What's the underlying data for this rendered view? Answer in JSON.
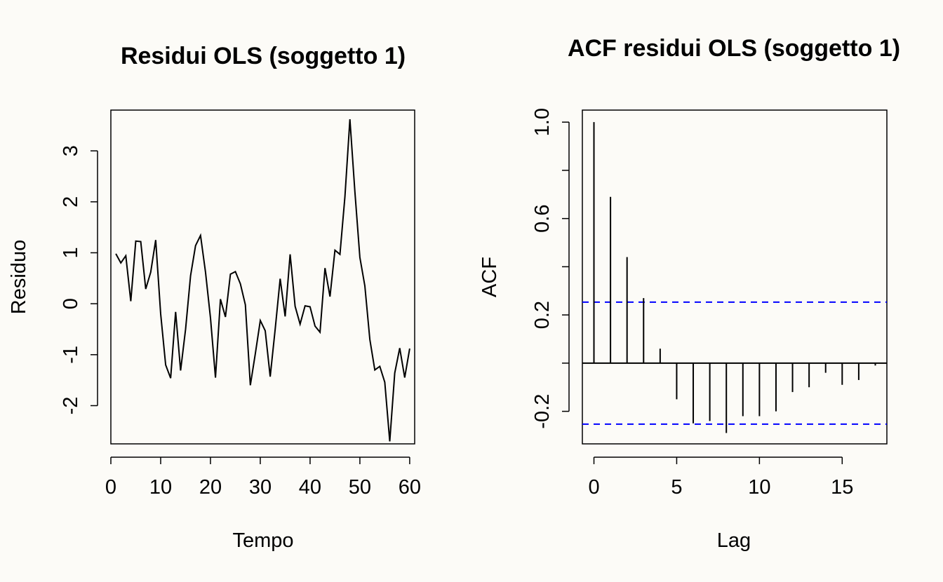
{
  "chart_data": [
    {
      "type": "line",
      "title": "Residui OLS (soggetto 1)",
      "xlabel": "Tempo",
      "ylabel": "Residuo",
      "xlim": [
        0,
        61
      ],
      "ylim": [
        -2.75,
        3.8
      ],
      "x_ticks": [
        0,
        10,
        20,
        30,
        40,
        50,
        60
      ],
      "y_ticks": [
        -2,
        -1,
        0,
        1,
        2,
        3
      ],
      "x_tick_labels": [
        "0",
        "10",
        "20",
        "30",
        "40",
        "50",
        "60"
      ],
      "y_tick_labels": [
        "-2",
        "-1",
        "0",
        "1",
        "2",
        "3"
      ],
      "series": [
        {
          "color": "#000000",
          "x": [
            1,
            2,
            3,
            4,
            5,
            6,
            7,
            8,
            9,
            10,
            11,
            12,
            13,
            14,
            15,
            16,
            17,
            18,
            19,
            20,
            21,
            22,
            23,
            24,
            25,
            26,
            27,
            28,
            29,
            30,
            31,
            32,
            33,
            34,
            35,
            36,
            37,
            38,
            39,
            40,
            41,
            42,
            43,
            44,
            45,
            46,
            47,
            48,
            49,
            50,
            51,
            52,
            53,
            54,
            55,
            56,
            57,
            58,
            59,
            60
          ],
          "values": [
            0.98,
            0.8,
            0.94,
            0.05,
            1.23,
            1.22,
            0.29,
            0.62,
            1.25,
            -0.2,
            -1.2,
            -1.46,
            -0.16,
            -1.31,
            -0.5,
            0.55,
            1.14,
            1.34,
            0.62,
            -0.28,
            -1.45,
            0.09,
            -0.26,
            0.58,
            0.63,
            0.39,
            -0.02,
            -1.6,
            -0.98,
            -0.33,
            -0.53,
            -1.43,
            -0.5,
            0.49,
            -0.25,
            0.97,
            -0.05,
            -0.4,
            -0.04,
            -0.06,
            -0.44,
            -0.56,
            0.7,
            0.14,
            1.05,
            0.97,
            2.1,
            3.62,
            2.2,
            0.91,
            0.35,
            -0.7,
            -1.3,
            -1.23,
            -1.54,
            -2.7,
            -1.36,
            -0.87,
            -1.45,
            -0.88
          ]
        }
      ]
    },
    {
      "type": "bar",
      "title": "ACF residui OLS (soggetto 1)",
      "xlabel": "Lag",
      "ylabel": "ACF",
      "xlim": [
        -0.7,
        17.7
      ],
      "ylim": [
        -0.335,
        1.05
      ],
      "x_ticks": [
        0,
        5,
        10,
        15
      ],
      "y_ticks": [
        -0.2,
        0.2,
        0.6,
        1.0
      ],
      "y_minor_ticks": [
        0.0,
        0.4,
        0.8
      ],
      "x_tick_labels": [
        "0",
        "5",
        "10",
        "15"
      ],
      "y_tick_labels": [
        "-0.2",
        "0.2",
        "0.6",
        "1.0"
      ],
      "lags": [
        0,
        1,
        2,
        3,
        4,
        5,
        6,
        7,
        8,
        9,
        10,
        11,
        12,
        13,
        14,
        15,
        16,
        17
      ],
      "values": [
        1.0,
        0.69,
        0.44,
        0.27,
        0.06,
        -0.15,
        -0.25,
        -0.24,
        -0.29,
        -0.22,
        -0.22,
        -0.2,
        -0.12,
        -0.1,
        -0.04,
        -0.09,
        -0.07,
        -0.01
      ],
      "confidence_bound": 0.253,
      "bound_color": "#0000ff",
      "bar_color": "#000000"
    }
  ]
}
